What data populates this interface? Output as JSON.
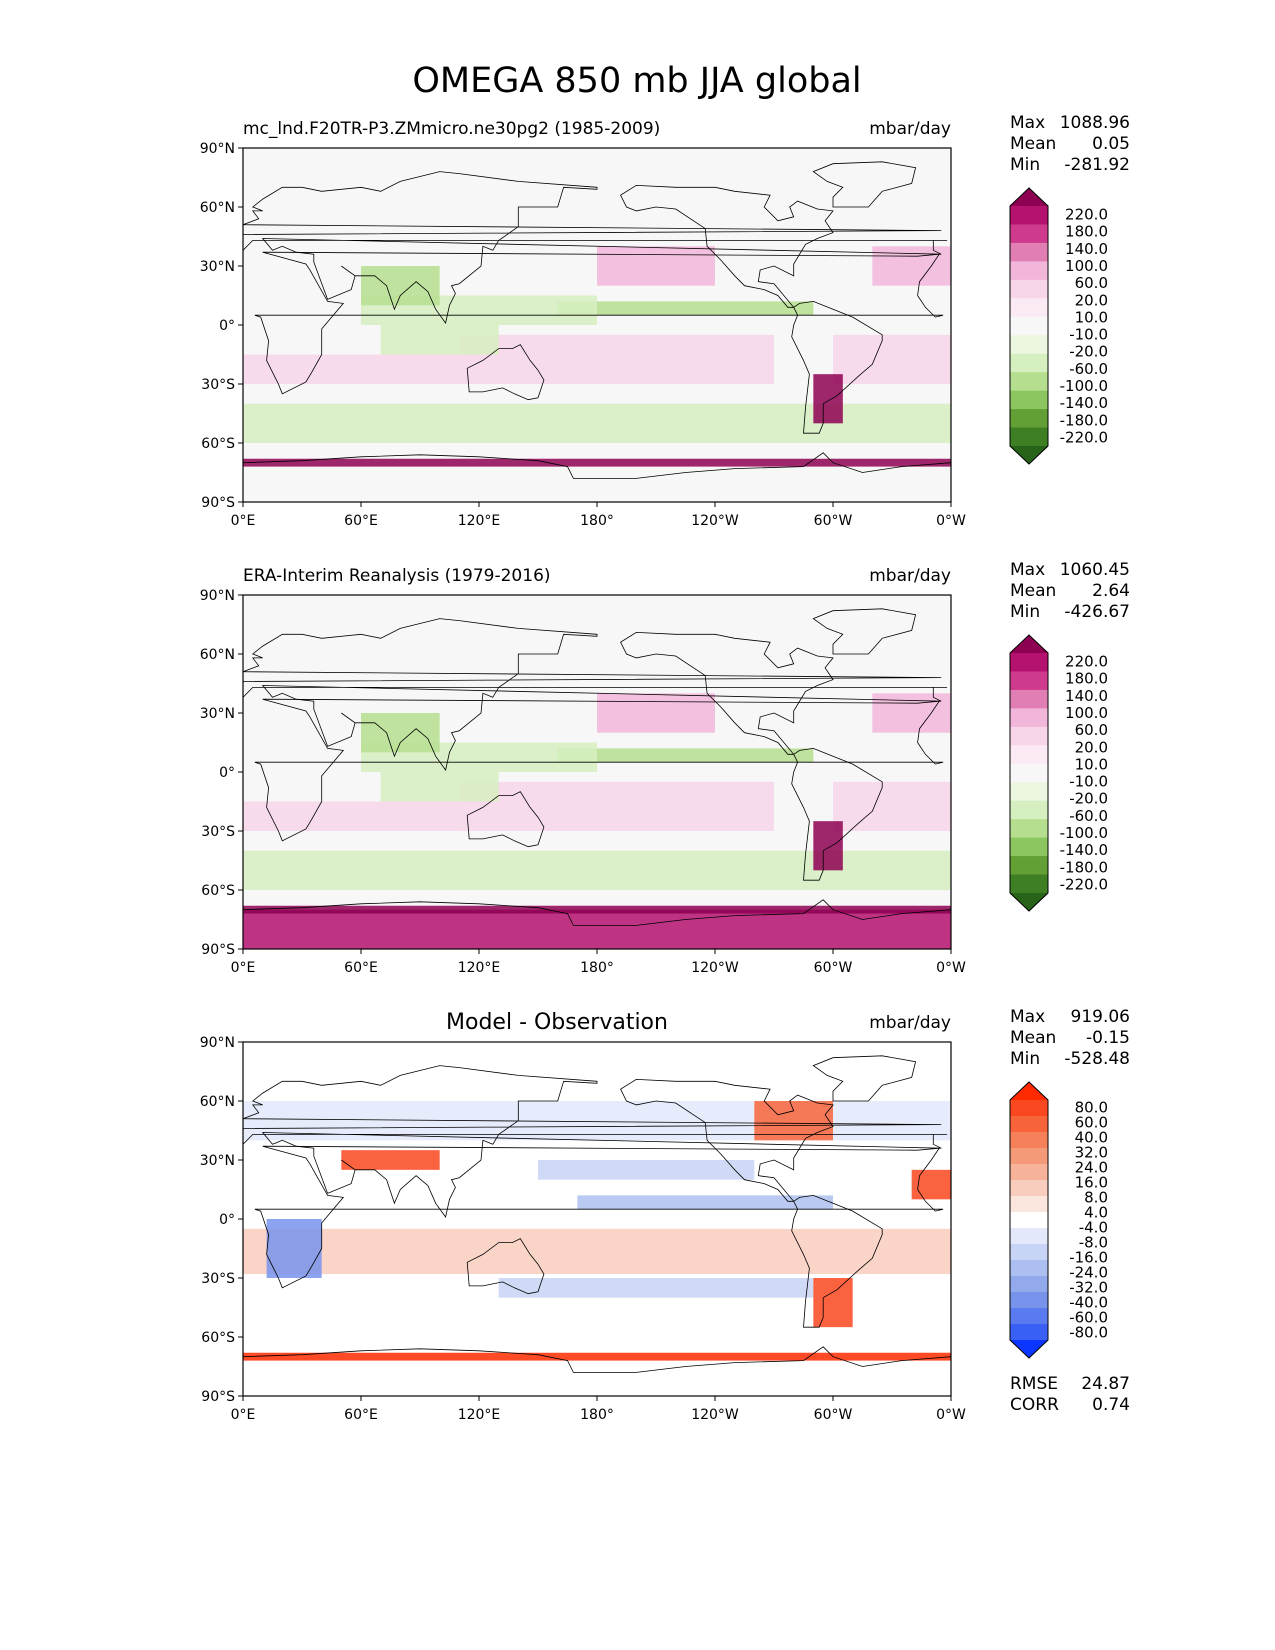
{
  "figure_title": "OMEGA 850 mb JJA global",
  "chart_data": [
    {
      "type": "heatmap",
      "panel": "test",
      "title": "mc_lnd.F20TR-P3.ZMmicro.ne30pg2 (1985-2009)",
      "units": "mbar/day",
      "stats": {
        "max_label": "Max",
        "max": "1088.96",
        "mean_label": "Mean",
        "mean": "0.05",
        "min_label": "Min",
        "min": "-281.92"
      },
      "colorbar": {
        "levels": [
          "220.0",
          "180.0",
          "140.0",
          "100.0",
          "60.0",
          "20.0",
          "10.0",
          "-10.0",
          "-20.0",
          "-60.0",
          "-100.0",
          "-140.0",
          "-180.0",
          "-220.0"
        ],
        "colors": [
          "#8e0152",
          "#b4126e",
          "#cf3b8c",
          "#e17fb5",
          "#f2b6da",
          "#f7d6ea",
          "#fbeaf3",
          "#f7f7f7",
          "#edf6e0",
          "#d6efc0",
          "#b5df8f",
          "#8cc660",
          "#62a035",
          "#3e7f24",
          "#276419"
        ]
      },
      "xticks": [
        "0°E",
        "60°E",
        "120°E",
        "180°",
        "120°W",
        "60°W",
        "0°W"
      ],
      "yticks": [
        "90°N",
        "60°N",
        "30°N",
        "0°",
        "30°S",
        "60°S",
        "90°S"
      ],
      "xlim": [
        0,
        360
      ],
      "ylim": [
        -90,
        90
      ]
    },
    {
      "type": "heatmap",
      "panel": "reference",
      "title": "ERA-Interim Reanalysis (1979-2016)",
      "units": "mbar/day",
      "stats": {
        "max_label": "Max",
        "max": "1060.45",
        "mean_label": "Mean",
        "mean": "2.64",
        "min_label": "Min",
        "min": "-426.67"
      },
      "colorbar": {
        "levels": [
          "220.0",
          "180.0",
          "140.0",
          "100.0",
          "60.0",
          "20.0",
          "10.0",
          "-10.0",
          "-20.0",
          "-60.0",
          "-100.0",
          "-140.0",
          "-180.0",
          "-220.0"
        ],
        "colors": [
          "#8e0152",
          "#b4126e",
          "#cf3b8c",
          "#e17fb5",
          "#f2b6da",
          "#f7d6ea",
          "#fbeaf3",
          "#f7f7f7",
          "#edf6e0",
          "#d6efc0",
          "#b5df8f",
          "#8cc660",
          "#62a035",
          "#3e7f24",
          "#276419"
        ]
      },
      "xticks": [
        "0°E",
        "60°E",
        "120°E",
        "180°",
        "120°W",
        "60°W",
        "0°W"
      ],
      "yticks": [
        "90°N",
        "60°N",
        "30°N",
        "0°",
        "30°S",
        "60°S",
        "90°S"
      ],
      "xlim": [
        0,
        360
      ],
      "ylim": [
        -90,
        90
      ]
    },
    {
      "type": "heatmap",
      "panel": "difference",
      "title": "Model - Observation",
      "units": "mbar/day",
      "stats": {
        "max_label": "Max",
        "max": "919.06",
        "mean_label": "Mean",
        "mean": "-0.15",
        "min_label": "Min",
        "min": "-528.48"
      },
      "rmse_label": "RMSE",
      "rmse": "24.87",
      "corr_label": "CORR",
      "corr": "0.74",
      "colorbar": {
        "levels": [
          "80.0",
          "60.0",
          "40.0",
          "32.0",
          "24.0",
          "16.0",
          "8.0",
          "4.0",
          "-4.0",
          "-8.0",
          "-16.0",
          "-24.0",
          "-32.0",
          "-40.0",
          "-60.0",
          "-80.0"
        ],
        "colors": [
          "#ff2a00",
          "#f9471f",
          "#f7643a",
          "#f58059",
          "#f59a79",
          "#f6b39a",
          "#f8cdbd",
          "#fbe6dd",
          "#ffffff",
          "#e3e9fb",
          "#c8d4f5",
          "#adbff0",
          "#92a9ec",
          "#7893ec",
          "#5a7bef",
          "#3a5ff5",
          "#0a36ff"
        ]
      },
      "xticks": [
        "0°E",
        "60°E",
        "120°E",
        "180°",
        "120°W",
        "60°W",
        "0°W"
      ],
      "yticks": [
        "90°N",
        "60°N",
        "30°N",
        "0°",
        "30°S",
        "60°S",
        "90°S"
      ],
      "xlim": [
        0,
        360
      ],
      "ylim": [
        -90,
        90
      ]
    }
  ]
}
